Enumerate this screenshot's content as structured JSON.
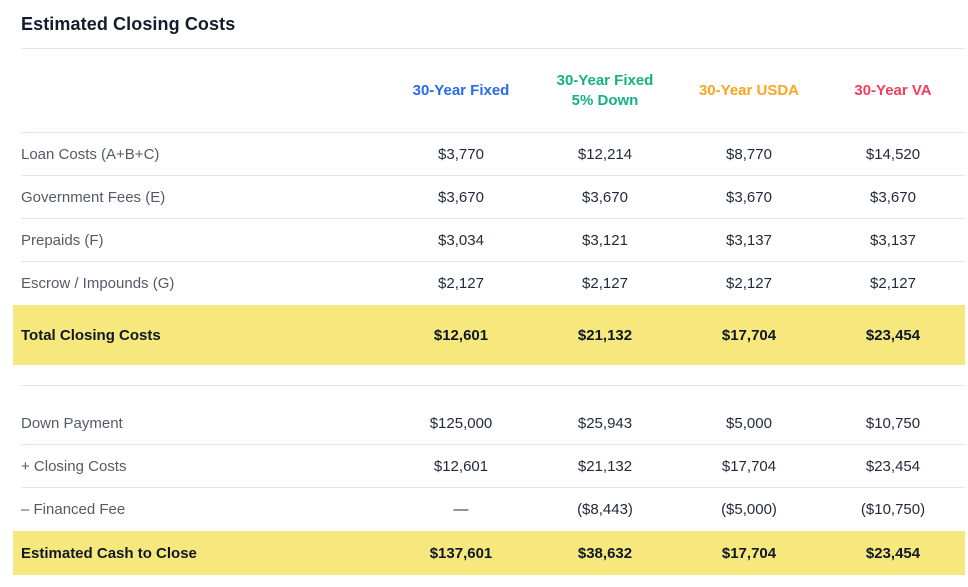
{
  "page_title": "Estimated Closing Costs",
  "colors": {
    "highlight_yellow": "#f7e87e",
    "divider": "#dfe5eb",
    "label_text": "#545b66",
    "value_text": "#222b3a",
    "title_text": "#121c2d"
  },
  "table": {
    "columns": [
      {
        "label": "30-Year Fixed",
        "color": "#2a6ae9"
      },
      {
        "label": "30-Year Fixed 5% Down",
        "color": "#15b183"
      },
      {
        "label": "30-Year USDA",
        "color": "#f9a423"
      },
      {
        "label": "30-Year VA",
        "color": "#f23e5f"
      }
    ],
    "sections": [
      {
        "rows": [
          {
            "label": "Loan Costs (A+B+C)",
            "values": [
              "$3,770",
              "$12,214",
              "$8,770",
              "$14,520"
            ]
          },
          {
            "label": "Government Fees (E)",
            "values": [
              "$3,670",
              "$3,670",
              "$3,670",
              "$3,670"
            ]
          },
          {
            "label": "Prepaids (F)",
            "values": [
              "$3,034",
              "$3,121",
              "$3,137",
              "$3,137"
            ]
          },
          {
            "label": "Escrow / Impounds (G)",
            "values": [
              "$2,127",
              "$2,127",
              "$2,127",
              "$2,127"
            ]
          }
        ],
        "total": {
          "label": "Total Closing Costs",
          "values": [
            "$12,601",
            "$21,132",
            "$17,704",
            "$23,454"
          ]
        }
      },
      {
        "rows": [
          {
            "label": "Down Payment",
            "values": [
              "$125,000",
              "$25,943",
              "$5,000",
              "$10,750"
            ]
          },
          {
            "label": "+ Closing Costs",
            "values": [
              "$12,601",
              "$21,132",
              "$17,704",
              "$23,454"
            ]
          },
          {
            "label": "– Financed Fee",
            "values": [
              "—",
              "($8,443)",
              "($5,000)",
              "($10,750)"
            ]
          }
        ],
        "total": {
          "label": "Estimated Cash to Close",
          "values": [
            "$137,601",
            "$38,632",
            "$17,704",
            "$23,454"
          ]
        }
      }
    ]
  }
}
